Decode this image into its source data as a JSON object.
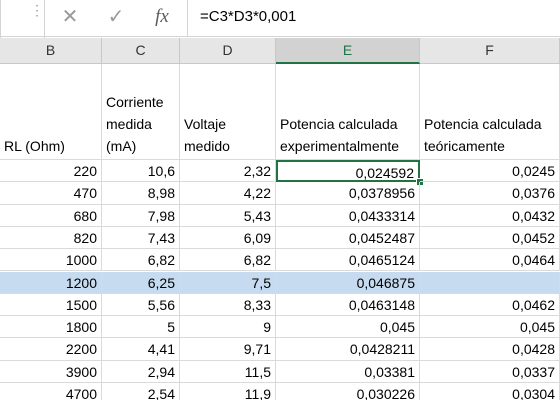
{
  "formula_bar": {
    "formula": "=C3*D3*0,001",
    "cancel_icon": "close-icon",
    "enter_icon": "checkmark-icon",
    "fx_label": "fx"
  },
  "columns": [
    "B",
    "C",
    "D",
    "E",
    "F"
  ],
  "selected_column": "E",
  "headers": {
    "B": "RL (Ohm)",
    "C": "Corriente medida (mA)",
    "D": "Voltaje medido",
    "E": "Potencia calculada experimentalmente",
    "F": "Potencia calculada teóricamente"
  },
  "rows": [
    [
      "220",
      "10,6",
      "2,32",
      "0,024592",
      "0,0245"
    ],
    [
      "470",
      "8,98",
      "4,22",
      "0,0378956",
      "0,0376"
    ],
    [
      "680",
      "7,98",
      "5,43",
      "0,0433314",
      "0,0432"
    ],
    [
      "820",
      "7,43",
      "6,09",
      "0,0452487",
      "0,0452"
    ],
    [
      "1000",
      "6,82",
      "6,82",
      "0,0465124",
      "0,0464"
    ],
    [
      "1200",
      "6,25",
      "7,5",
      "0,046875",
      ""
    ],
    [
      "1500",
      "5,56",
      "8,33",
      "0,0463148",
      "0,0462"
    ],
    [
      "1800",
      "5",
      "9",
      "0,045",
      "0,045"
    ],
    [
      "2200",
      "4,41",
      "9,71",
      "0,0428211",
      "0,0428"
    ],
    [
      "3900",
      "2,94",
      "11,5",
      "0,03381",
      "0,0337"
    ],
    [
      "4700",
      "2,54",
      "11,9",
      "0,030226",
      "0,0304"
    ]
  ],
  "highlighted_row_index": 5,
  "active_cell": "E3",
  "colors": {
    "accent": "#217346",
    "highlight": "#c6dbef"
  }
}
